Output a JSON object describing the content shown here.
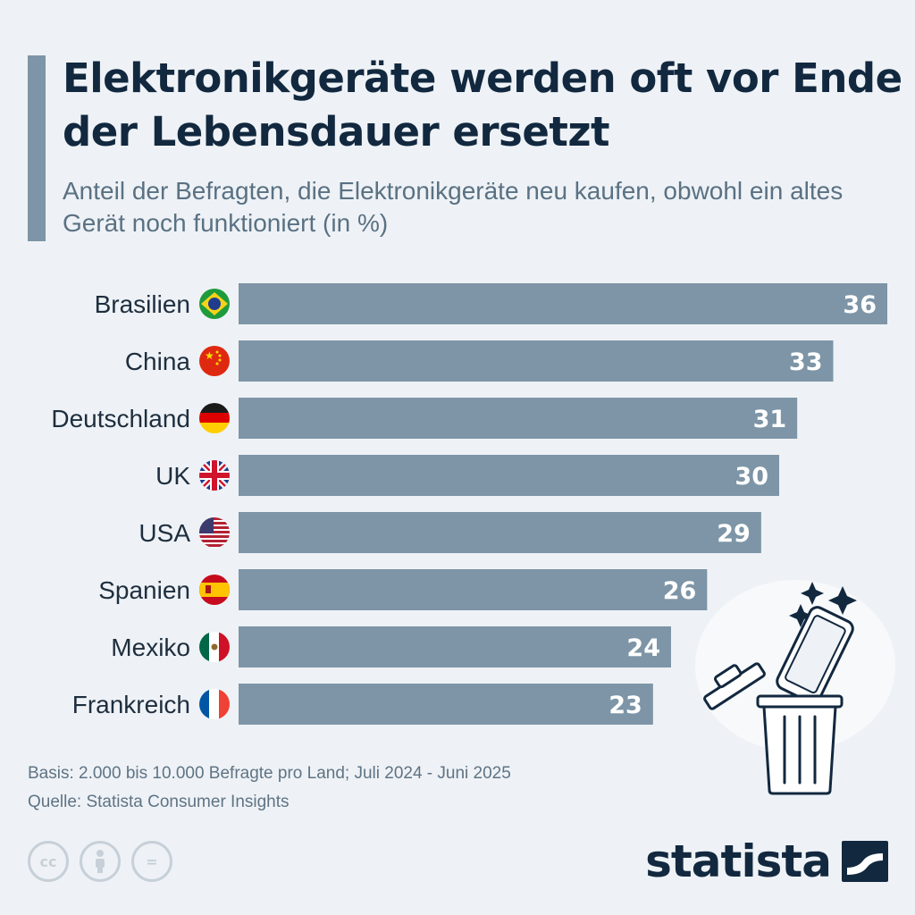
{
  "header": {
    "title": "Elektronikgeräte werden oft vor Ende der Lebensdauer ersetzt",
    "subtitle": "Anteil der Befragten, die Elektronikgeräte neu kaufen, obwohl ein altes Gerät noch funktioniert (in %)"
  },
  "chart_data": {
    "type": "bar",
    "orientation": "horizontal",
    "title": "Elektronikgeräte werden oft vor Ende der Lebensdauer ersetzt",
    "subtitle": "Anteil der Befragten, die Elektronikgeräte neu kaufen, obwohl ein altes Gerät noch funktioniert (in %)",
    "categories": [
      "Brasilien",
      "China",
      "Deutschland",
      "UK",
      "USA",
      "Spanien",
      "Mexiko",
      "Frankreich"
    ],
    "values": [
      36,
      33,
      31,
      30,
      29,
      26,
      24,
      23
    ],
    "flags": [
      "brazil-flag-icon",
      "china-flag-icon",
      "germany-flag-icon",
      "uk-flag-icon",
      "usa-flag-icon",
      "spain-flag-icon",
      "mexico-flag-icon",
      "france-flag-icon"
    ],
    "data_labels": true,
    "grid": false,
    "legend": "none",
    "xlim": [
      0,
      36
    ],
    "bar_color": "#7d95a6",
    "label_color": "#ffffff"
  },
  "footer": {
    "basis": "Basis: 2.000 bis 10.000 Befragte pro Land; Juli 2024 - Juni 2025",
    "source": "Quelle: Statista Consumer Insights",
    "license_icons": [
      "cc-icon",
      "attribution-icon",
      "no-derivatives-icon"
    ],
    "license_labels": [
      "cc",
      "",
      "="
    ],
    "brand": "statista"
  },
  "illustration": {
    "icon": "trash-can-with-phone-icon"
  },
  "colors": {
    "background": "#eef2f6",
    "title": "#12283f",
    "subtitle": "#5a7183",
    "accent": "#7d95a6",
    "text": "#1e2e3e"
  }
}
